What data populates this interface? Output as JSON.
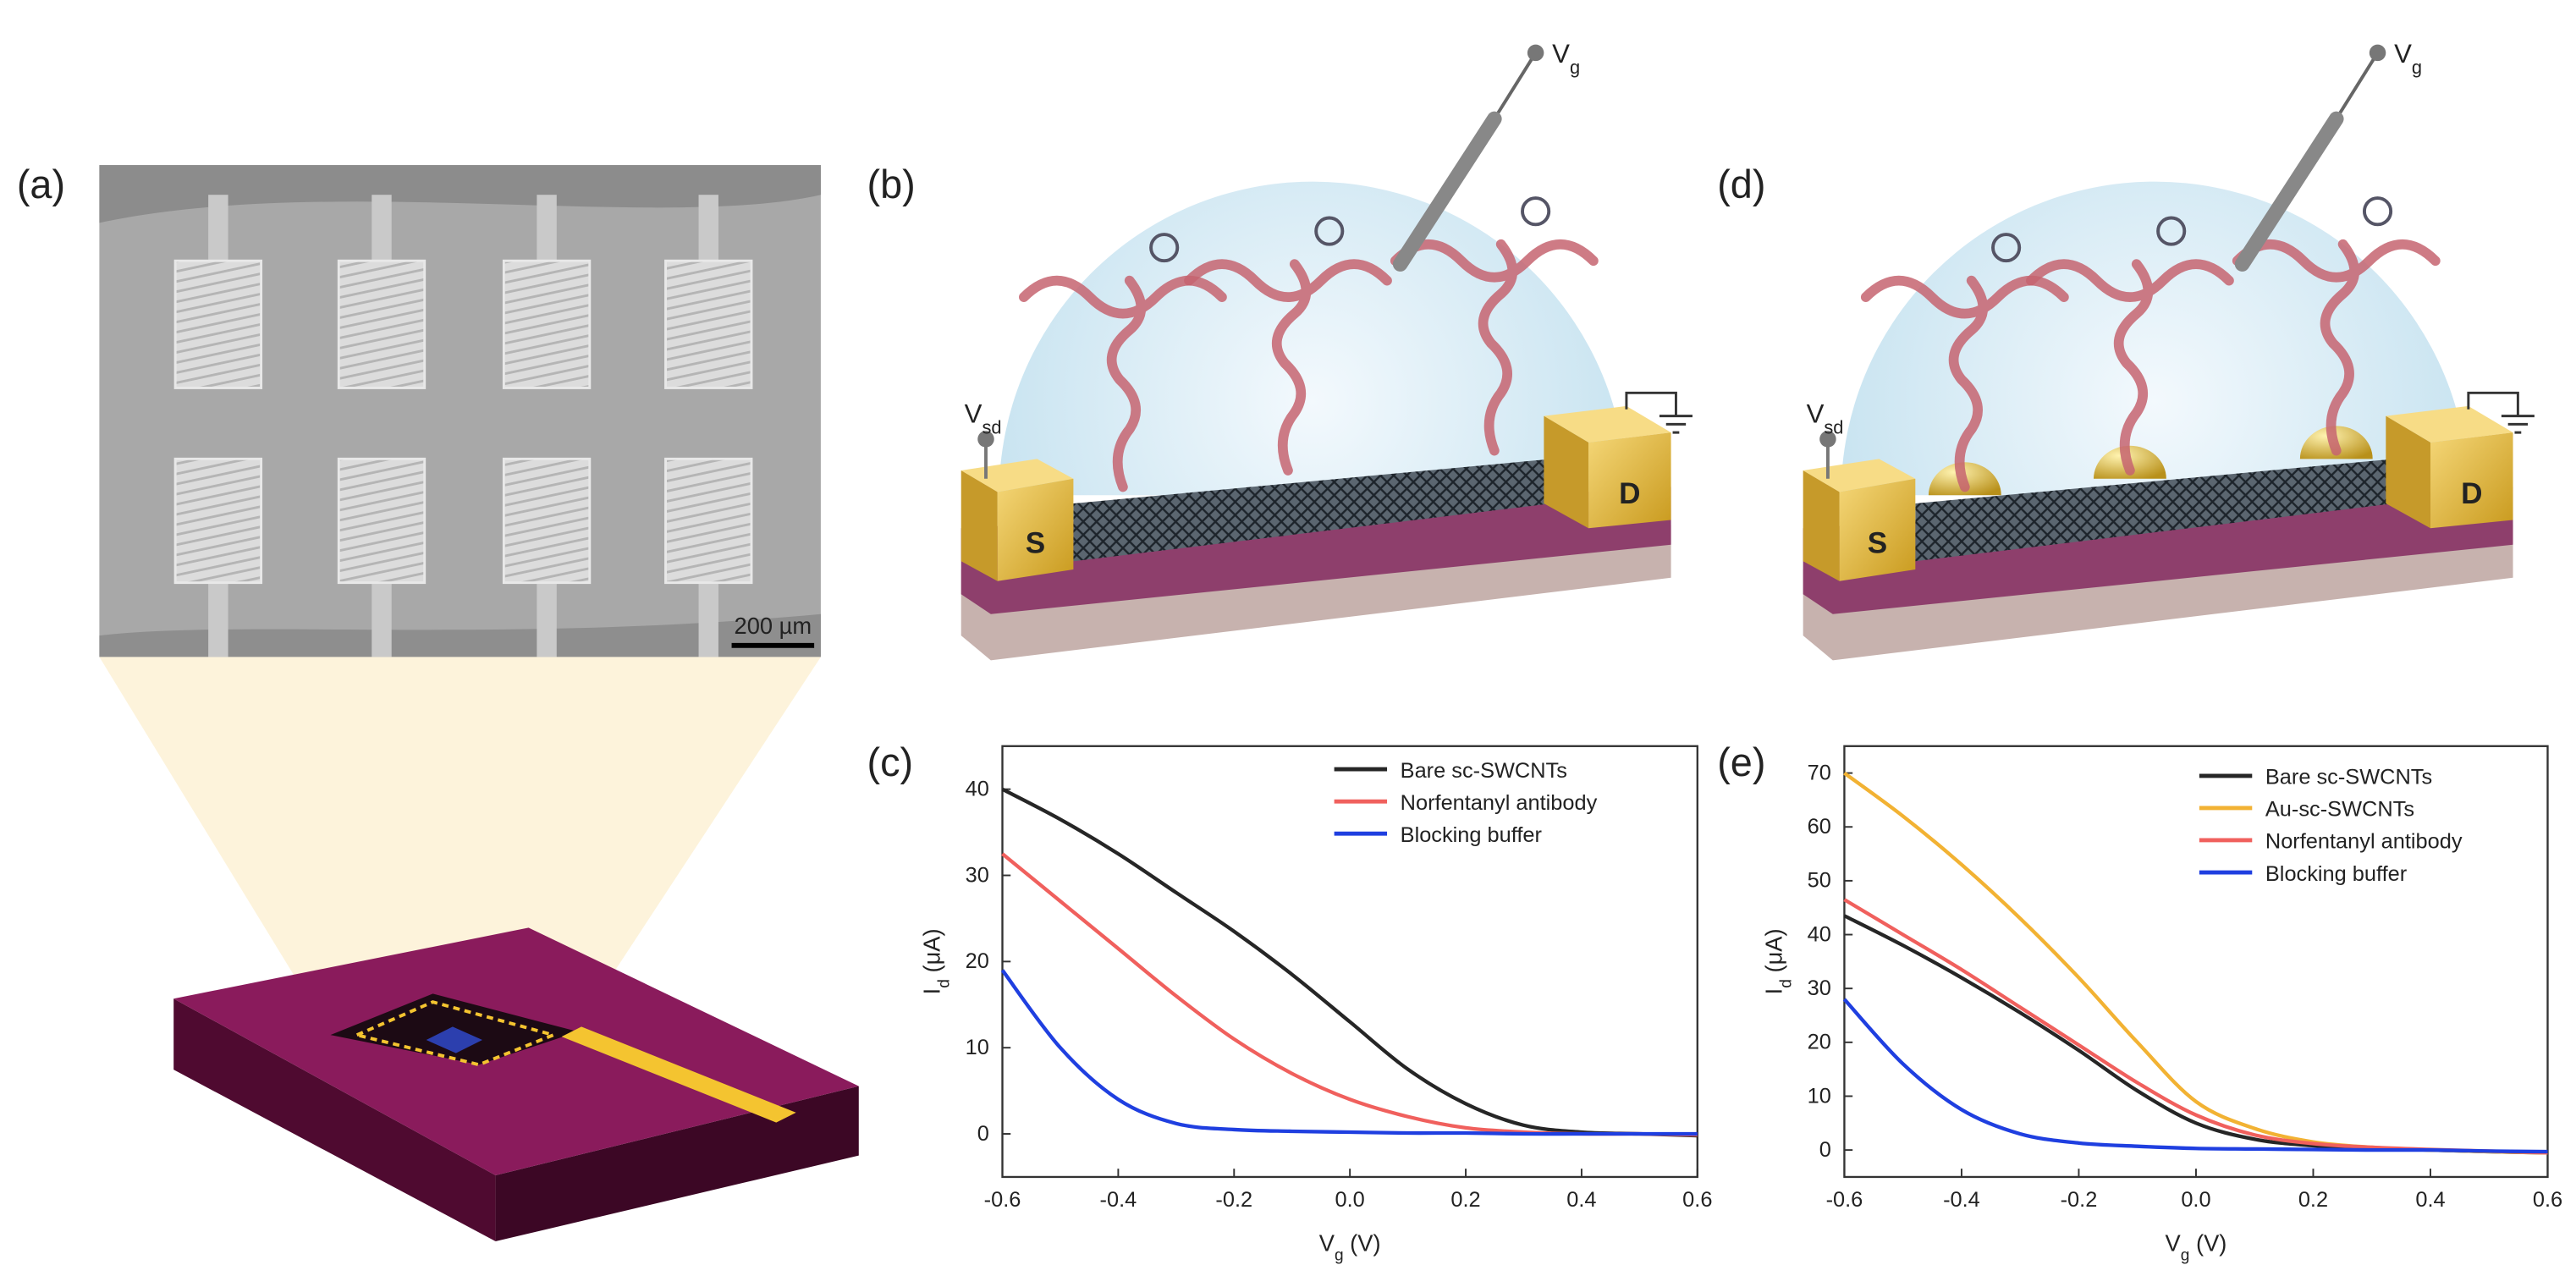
{
  "panels": [
    "(a)",
    "(b)",
    "(c)",
    "(d)",
    "(e)"
  ],
  "scale_bar": "200 µm",
  "device": {
    "gate": [
      "V",
      "g"
    ],
    "source_drain": [
      "V",
      "sd"
    ],
    "source": "S",
    "drain": "D"
  },
  "chart_data": [
    {
      "type": "line",
      "xlabel": [
        "V",
        "g",
        " (V)"
      ],
      "ylabel": [
        "I",
        "d",
        " (μA)"
      ],
      "x": [
        -0.6,
        -0.5,
        -0.4,
        -0.3,
        -0.2,
        -0.1,
        0,
        0.1,
        0.2,
        0.3,
        0.4,
        0.5,
        0.6
      ],
      "xlim": [
        -0.6,
        0.6
      ],
      "xticks": [
        -0.6,
        -0.4,
        -0.2,
        {
          "value": 0,
          "label": "0.0"
        },
        0.2,
        0.4,
        0.6
      ],
      "ylim": [
        -5,
        45
      ],
      "yticks": [
        0,
        10,
        20,
        30,
        40
      ],
      "legend": "upper right",
      "series": [
        {
          "name": "Bare sc-SWCNTs",
          "color": "#262626",
          "values": [
            40,
            36.5,
            32.5,
            28,
            23.5,
            18.5,
            13,
            7.5,
            3.5,
            1,
            0.2,
            0,
            -0.2
          ]
        },
        {
          "name": "Norfentanyl antibody",
          "color": "#f0605d",
          "values": [
            32.5,
            27,
            21.5,
            16,
            11,
            7,
            4,
            2,
            0.7,
            0.2,
            0,
            0,
            -0.1
          ]
        },
        {
          "name": "Blocking buffer",
          "color": "#1f3fe0",
          "values": [
            19,
            10,
            4,
            1.2,
            0.5,
            0.3,
            0.2,
            0.1,
            0.1,
            0,
            0,
            0,
            0
          ]
        }
      ]
    },
    {
      "type": "line",
      "xlabel": [
        "V",
        "g",
        " (V)"
      ],
      "ylabel": [
        "I",
        "d",
        " (μA)"
      ],
      "x": [
        -0.6,
        -0.5,
        -0.4,
        -0.3,
        -0.2,
        -0.1,
        0,
        0.1,
        0.2,
        0.3,
        0.4,
        0.5,
        0.6
      ],
      "xlim": [
        -0.6,
        0.6
      ],
      "xticks": [
        -0.6,
        -0.4,
        -0.2,
        {
          "value": 0,
          "label": "0.0"
        },
        0.2,
        0.4,
        0.6
      ],
      "ylim": [
        -5,
        75
      ],
      "yticks": [
        0,
        10,
        20,
        30,
        40,
        50,
        60,
        70
      ],
      "legend": "upper right",
      "series": [
        {
          "name": "Bare sc-SWCNTs",
          "color": "#262626",
          "values": [
            43.5,
            38,
            32,
            25.5,
            18.5,
            11,
            5,
            2,
            0.8,
            0.3,
            0,
            -0.3,
            -0.5
          ]
        },
        {
          "name": "Au-sc-SWCNTs",
          "color": "#f2b233",
          "values": [
            70,
            62,
            53,
            43,
            32,
            20,
            9,
            4,
            1.5,
            0.5,
            0,
            -0.3,
            -0.5
          ]
        },
        {
          "name": "Norfentanyl antibody",
          "color": "#f0605d",
          "values": [
            46.5,
            40,
            33.5,
            26.5,
            19.5,
            12.5,
            6.5,
            2.8,
            1.2,
            0.5,
            0.1,
            -0.2,
            -0.5
          ]
        },
        {
          "name": "Blocking buffer",
          "color": "#1f3fe0",
          "values": [
            28,
            16,
            7.5,
            3,
            1.3,
            0.7,
            0.3,
            0.2,
            0.1,
            0,
            0,
            -0.2,
            -0.3
          ]
        }
      ]
    }
  ]
}
